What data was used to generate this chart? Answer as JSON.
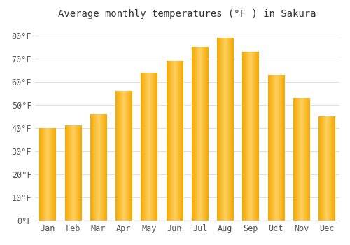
{
  "title": "Average monthly temperatures (°F ) in Sakura",
  "months": [
    "Jan",
    "Feb",
    "Mar",
    "Apr",
    "May",
    "Jun",
    "Jul",
    "Aug",
    "Sep",
    "Oct",
    "Nov",
    "Dec"
  ],
  "values": [
    40,
    41,
    46,
    56,
    64,
    69,
    75,
    79,
    73,
    63,
    53,
    45
  ],
  "bar_color": "#F5A800",
  "bar_color_light": "#FFD060",
  "background_color": "#FFFFFF",
  "grid_color": "#E0E0E0",
  "yticks": [
    0,
    10,
    20,
    30,
    40,
    50,
    60,
    70,
    80
  ],
  "ylim": [
    0,
    85
  ],
  "title_fontsize": 10,
  "tick_fontsize": 8.5
}
